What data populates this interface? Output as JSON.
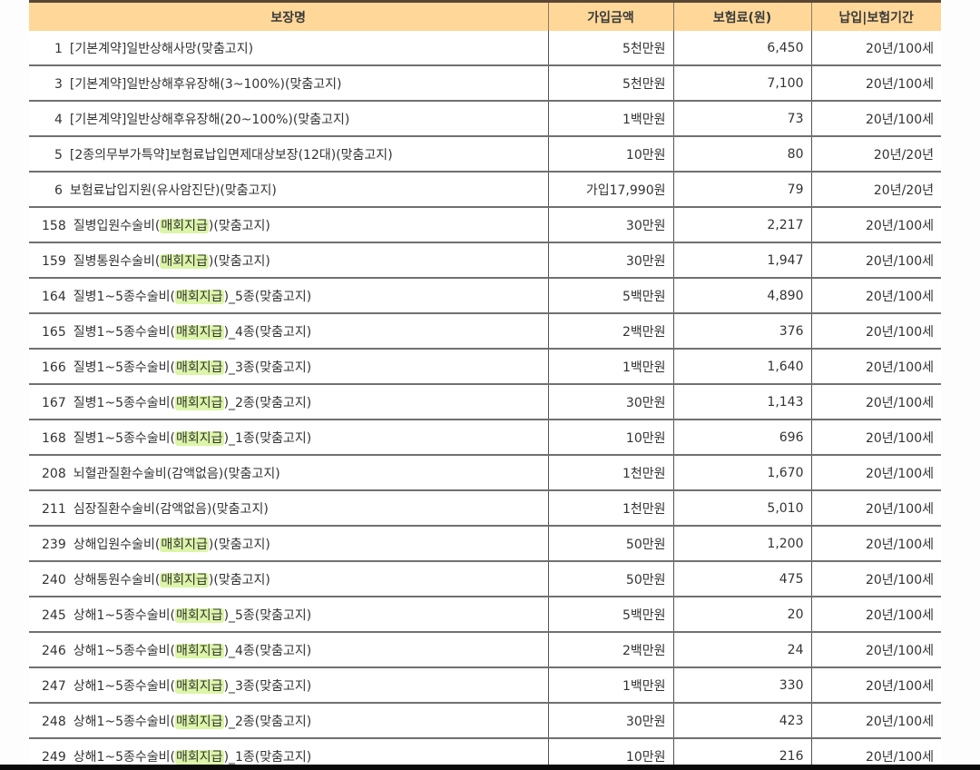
{
  "table": {
    "headers": {
      "name": "보장명",
      "amount": "가입금액",
      "premium": "보험료(원)",
      "period": "납입|보험기간"
    },
    "highlight_color": "#dcf5a8",
    "header_bg": "#ffd899",
    "rows": [
      {
        "no": "1",
        "pre": "[기본계약]일반상해사망(맞춤고지)",
        "hl": "",
        "post": "",
        "amount": "5천만원",
        "premium": "6,450",
        "period": "20년/100세"
      },
      {
        "no": "3",
        "pre": "[기본계약]일반상해후유장해(3~100%)(맞춤고지)",
        "hl": "",
        "post": "",
        "amount": "5천만원",
        "premium": "7,100",
        "period": "20년/100세"
      },
      {
        "no": "4",
        "pre": "[기본계약]일반상해후유장해(20~100%)(맞춤고지)",
        "hl": "",
        "post": "",
        "amount": "1백만원",
        "premium": "73",
        "period": "20년/100세"
      },
      {
        "no": "5",
        "pre": "[2종의무부가특약]보험료납입면제대상보장(12대)(맞춤고지)",
        "hl": "",
        "post": "",
        "amount": "10만원",
        "premium": "80",
        "period": "20년/20년"
      },
      {
        "no": "6",
        "pre": "보험료납입지원(유사암진단)(맞춤고지)",
        "hl": "",
        "post": "",
        "amount": "가입17,990원",
        "premium": "79",
        "period": "20년/20년"
      },
      {
        "no": "158",
        "pre": "질병입원수술비(",
        "hl": "매회지급",
        "post": ")(맞춤고지)",
        "amount": "30만원",
        "premium": "2,217",
        "period": "20년/100세"
      },
      {
        "no": "159",
        "pre": "질병통원수술비(",
        "hl": "매회지급",
        "post": ")(맞춤고지)",
        "amount": "30만원",
        "premium": "1,947",
        "period": "20년/100세"
      },
      {
        "no": "164",
        "pre": "질병1~5종수술비(",
        "hl": "매회지급",
        "post": ")_5종(맞춤고지)",
        "amount": "5백만원",
        "premium": "4,890",
        "period": "20년/100세"
      },
      {
        "no": "165",
        "pre": "질병1~5종수술비(",
        "hl": "매회지급",
        "post": ")_4종(맞춤고지)",
        "amount": "2백만원",
        "premium": "376",
        "period": "20년/100세"
      },
      {
        "no": "166",
        "pre": "질병1~5종수술비(",
        "hl": "매회지급",
        "post": ")_3종(맞춤고지)",
        "amount": "1백만원",
        "premium": "1,640",
        "period": "20년/100세"
      },
      {
        "no": "167",
        "pre": "질병1~5종수술비(",
        "hl": "매회지급",
        "post": ")_2종(맞춤고지)",
        "amount": "30만원",
        "premium": "1,143",
        "period": "20년/100세"
      },
      {
        "no": "168",
        "pre": "질병1~5종수술비(",
        "hl": "매회지급",
        "post": ")_1종(맞춤고지)",
        "amount": "10만원",
        "premium": "696",
        "period": "20년/100세"
      },
      {
        "no": "208",
        "pre": "뇌혈관질환수술비(감액없음)(맞춤고지)",
        "hl": "",
        "post": "",
        "amount": "1천만원",
        "premium": "1,670",
        "period": "20년/100세"
      },
      {
        "no": "211",
        "pre": "심장질환수술비(감액없음)(맞춤고지)",
        "hl": "",
        "post": "",
        "amount": "1천만원",
        "premium": "5,010",
        "period": "20년/100세"
      },
      {
        "no": "239",
        "pre": "상해입원수술비(",
        "hl": "매회지급",
        "post": ")(맞춤고지)",
        "amount": "50만원",
        "premium": "1,200",
        "period": "20년/100세"
      },
      {
        "no": "240",
        "pre": "상해통원수술비(",
        "hl": "매회지급",
        "post": ")(맞춤고지)",
        "amount": "50만원",
        "premium": "475",
        "period": "20년/100세"
      },
      {
        "no": "245",
        "pre": "상해1~5종수술비(",
        "hl": "매회지급",
        "post": ")_5종(맞춤고지)",
        "amount": "5백만원",
        "premium": "20",
        "period": "20년/100세"
      },
      {
        "no": "246",
        "pre": "상해1~5종수술비(",
        "hl": "매회지급",
        "post": ")_4종(맞춤고지)",
        "amount": "2백만원",
        "premium": "24",
        "period": "20년/100세"
      },
      {
        "no": "247",
        "pre": "상해1~5종수술비(",
        "hl": "매회지급",
        "post": ")_3종(맞춤고지)",
        "amount": "1백만원",
        "premium": "330",
        "period": "20년/100세"
      },
      {
        "no": "248",
        "pre": "상해1~5종수술비(",
        "hl": "매회지급",
        "post": ")_2종(맞춤고지)",
        "amount": "30만원",
        "premium": "423",
        "period": "20년/100세"
      },
      {
        "no": "249",
        "pre": "상해1~5종수술비(",
        "hl": "매회지급",
        "post": ")_1종(맞춤고지)",
        "amount": "10만원",
        "premium": "216",
        "period": "20년/100세"
      }
    ]
  }
}
